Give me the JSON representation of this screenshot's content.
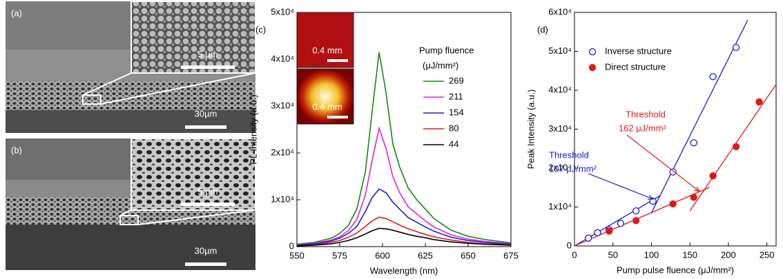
{
  "panels": [
    {
      "label": "(a)",
      "inset_scale": "5 µm",
      "scale": "30µm"
    },
    {
      "label": "(b)",
      "inset_scale": "5 µm",
      "scale": "30µm"
    }
  ],
  "chart_data": [
    {
      "type": "line",
      "panel_label": "(c)",
      "xlabel": "Wavelength (nm)",
      "ylabel": "PL Intensity (a.u.)",
      "x": [
        550,
        560,
        570,
        575,
        580,
        585,
        590,
        594,
        598,
        602,
        606,
        610,
        615,
        620,
        625,
        630,
        640,
        650,
        660,
        675
      ],
      "xlim": [
        550,
        675
      ],
      "xticks": [
        550,
        575,
        600,
        625,
        650,
        675
      ],
      "ylim": [
        0,
        50000
      ],
      "yticks": [
        0,
        {
          "value": 10000,
          "label": "1x10⁴"
        },
        {
          "value": 20000,
          "label": "2x10⁴"
        },
        {
          "value": 30000,
          "label": "3x10⁴"
        },
        {
          "value": 40000,
          "label": "4x10⁴"
        },
        {
          "value": 50000,
          "label": "5x10⁴"
        }
      ],
      "legend": "upper right",
      "legend_title": "Pump fluence",
      "legend_subtitle": "(μJ/mm²)",
      "inset_labels": [
        "0.4 mm",
        "0.4 mm"
      ],
      "series": [
        {
          "name": "269",
          "color": "#118811",
          "values": [
            500,
            900,
            1800,
            2800,
            4500,
            8000,
            16000,
            29000,
            41500,
            33000,
            22000,
            17000,
            12500,
            10000,
            8000,
            6000,
            3500,
            2200,
            1500,
            800
          ]
        },
        {
          "name": "211",
          "color": "#e020e0",
          "values": [
            400,
            700,
            1400,
            2100,
            3400,
            5800,
            11000,
            18500,
            25300,
            21000,
            15000,
            11500,
            8500,
            7000,
            5500,
            4200,
            2500,
            1600,
            1100,
            600
          ]
        },
        {
          "name": "154",
          "color": "#1a1ad8",
          "values": [
            300,
            600,
            1200,
            1800,
            2800,
            4300,
            7500,
            10500,
            12300,
            11500,
            9500,
            8000,
            6200,
            5200,
            4200,
            3300,
            2000,
            1300,
            900,
            500
          ]
        },
        {
          "name": "80",
          "color": "#e01818",
          "values": [
            200,
            400,
            900,
            1300,
            2000,
            2900,
            4300,
            5500,
            6300,
            6000,
            5300,
            4600,
            3800,
            3200,
            2600,
            2100,
            1400,
            900,
            600,
            400
          ]
        },
        {
          "name": "44",
          "color": "#000000",
          "values": [
            150,
            300,
            600,
            900,
            1300,
            1900,
            2700,
            3400,
            3900,
            3800,
            3500,
            3100,
            2600,
            2200,
            1900,
            1500,
            1000,
            700,
            500,
            300
          ]
        }
      ]
    },
    {
      "type": "scatter",
      "panel_label": "(d)",
      "xlabel": "Pump pulse fluence  (μJ/mm²)",
      "ylabel": "Peak Intensity (a.u.)",
      "xlim": [
        0,
        262
      ],
      "xticks": [
        0,
        50,
        100,
        150,
        200,
        250
      ],
      "ylim": [
        0,
        60000
      ],
      "yticks": [
        0,
        {
          "value": 10000,
          "label": "1x10⁴"
        },
        {
          "value": 20000,
          "label": "2x10⁴"
        },
        {
          "value": 30000,
          "label": "3x10⁴"
        },
        {
          "value": 40000,
          "label": "4x10⁴"
        },
        {
          "value": 50000,
          "label": "5x10⁴"
        },
        {
          "value": 60000,
          "label": "6x10⁴"
        }
      ],
      "legend": "upper left",
      "series": [
        {
          "name": "Inverse structure",
          "color": "#1a1ad8",
          "marker": "open",
          "x": [
            18,
            30,
            45,
            60,
            80,
            102,
            128,
            155,
            180,
            210
          ],
          "values": [
            2000,
            3400,
            4200,
            5800,
            9000,
            11500,
            19000,
            26500,
            43500,
            51000
          ]
        },
        {
          "name": "Direct structure",
          "color": "#e01818",
          "marker": "filled",
          "x": [
            45,
            80,
            128,
            155,
            180,
            210,
            240
          ],
          "values": [
            3800,
            6500,
            10800,
            12500,
            18000,
            25500,
            37000
          ]
        }
      ],
      "fit_lines": [
        {
          "color": "#1a1ad8",
          "x": [
            0,
            112
          ],
          "values": [
            0,
            13000
          ]
        },
        {
          "color": "#1a1ad8",
          "x": [
            100,
            225
          ],
          "values": [
            8500,
            58000
          ]
        },
        {
          "color": "#e01818",
          "x": [
            0,
            175
          ],
          "values": [
            0,
            15000
          ]
        },
        {
          "color": "#e01818",
          "x": [
            150,
            262
          ],
          "values": [
            9000,
            41500
          ]
        }
      ],
      "annotations": [
        {
          "text": "Threshold",
          "value_text": "107 μJ/mm²",
          "color": "#1a1ad8"
        },
        {
          "text": "Threshold",
          "value_text": "162 μJ/mm²",
          "color": "#e01818"
        }
      ]
    }
  ]
}
